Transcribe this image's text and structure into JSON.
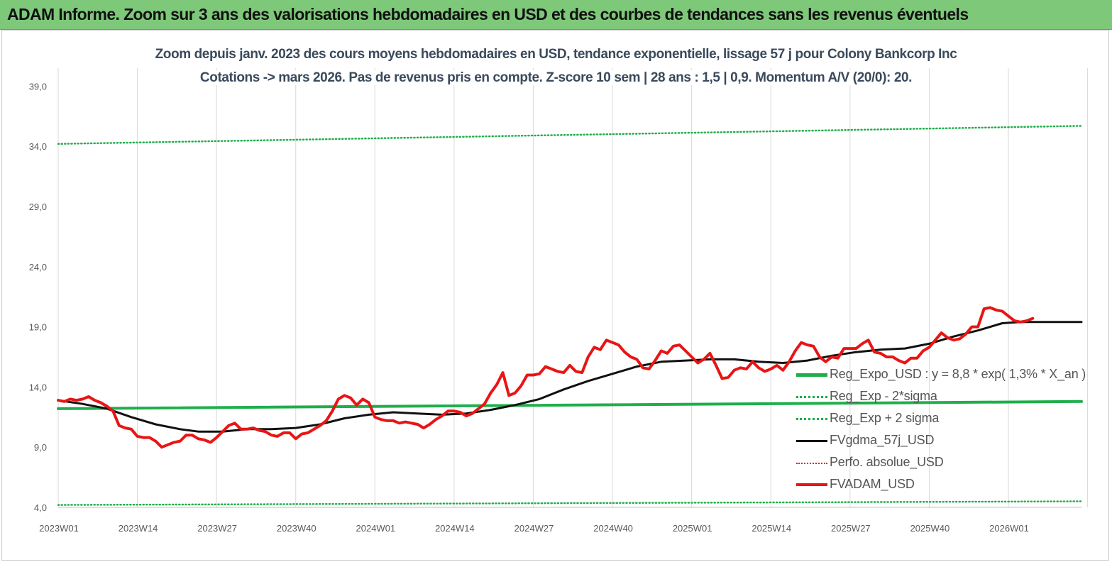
{
  "banner": {
    "title": "ADAM Informe. Zoom sur 3 ans des valorisations hebdomadaires en USD et des courbes de tendances sans les revenus éventuels"
  },
  "chart_data": {
    "type": "line",
    "title": "Zoom depuis janv. 2023 des cours moyens hebdomadaires en USD, tendance exponentielle, lissage 57 j pour Colony Bankcorp Inc",
    "subtitle": "Cotations -> mars 2026. Pas de revenus pris en compte. Z-score 10 sem | 28 ans : 1,5 | 0,9. Momentum A/V (20/0): 20.",
    "xlabel": "",
    "ylabel": "",
    "ylim": [
      4.0,
      40.5
    ],
    "y_ticks": [
      "4,0",
      "9,0",
      "14,0",
      "19,0",
      "24,0",
      "29,0",
      "34,0",
      "39,0"
    ],
    "y_tick_values": [
      4,
      9,
      14,
      19,
      24,
      29,
      34,
      39
    ],
    "x_tick_labels": [
      "2023W01",
      "2023W14",
      "2023W27",
      "2023W40",
      "2024W01",
      "2024W14",
      "2024W27",
      "2024W40",
      "2025W01",
      "2025W14",
      "2025W27",
      "2025W40",
      "2026W01"
    ],
    "x_range_weeks": [
      0,
      168
    ],
    "grid": "vertical",
    "legend_position": "lower-right",
    "series": [
      {
        "name": "Reg_Expo_USD : y = 8,8 * exp( 1,3% *  X_an )",
        "color": "#1fae4b",
        "style": "solid-thick",
        "points": [
          [
            0,
            12.2
          ],
          [
            168,
            12.8
          ]
        ]
      },
      {
        "name": "Reg_Exp - 2*sigma",
        "color": "#1fae4b",
        "style": "dotted",
        "points": [
          [
            0,
            4.2
          ],
          [
            168,
            4.5
          ]
        ]
      },
      {
        "name": "Reg_Exp + 2 sigma",
        "color": "#1fae4b",
        "style": "dotted",
        "points": [
          [
            0,
            34.2
          ],
          [
            168,
            35.7
          ]
        ]
      },
      {
        "name": "FVgdma_57j_USD",
        "color": "#111111",
        "style": "solid",
        "points": [
          [
            0,
            12.9
          ],
          [
            4,
            12.6
          ],
          [
            8,
            12.2
          ],
          [
            12,
            11.5
          ],
          [
            16,
            10.9
          ],
          [
            20,
            10.5
          ],
          [
            23,
            10.3
          ],
          [
            27,
            10.3
          ],
          [
            31,
            10.5
          ],
          [
            35,
            10.5
          ],
          [
            39,
            10.6
          ],
          [
            43,
            10.9
          ],
          [
            47,
            11.4
          ],
          [
            51,
            11.7
          ],
          [
            55,
            11.9
          ],
          [
            59,
            11.8
          ],
          [
            63,
            11.7
          ],
          [
            67,
            11.8
          ],
          [
            71,
            12.1
          ],
          [
            75,
            12.5
          ],
          [
            79,
            13.0
          ],
          [
            83,
            13.8
          ],
          [
            87,
            14.5
          ],
          [
            91,
            15.1
          ],
          [
            95,
            15.7
          ],
          [
            99,
            16.1
          ],
          [
            103,
            16.2
          ],
          [
            107,
            16.3
          ],
          [
            111,
            16.3
          ],
          [
            115,
            16.1
          ],
          [
            119,
            16.0
          ],
          [
            123,
            16.2
          ],
          [
            127,
            16.6
          ],
          [
            131,
            16.9
          ],
          [
            135,
            17.1
          ],
          [
            139,
            17.2
          ],
          [
            143,
            17.6
          ],
          [
            147,
            18.2
          ],
          [
            151,
            18.7
          ],
          [
            155,
            19.3
          ],
          [
            158,
            19.4
          ],
          [
            163,
            19.4
          ],
          [
            168,
            19.4
          ]
        ]
      },
      {
        "name": "Perfo. absolue_USD",
        "color": "#e02020",
        "style": "dotted",
        "points": []
      },
      {
        "name": "FVADAM_USD",
        "color": "#e81515",
        "style": "solid-thick",
        "points": [
          [
            0,
            12.9
          ],
          [
            1,
            12.8
          ],
          [
            2,
            13.0
          ],
          [
            3,
            12.9
          ],
          [
            4,
            13.0
          ],
          [
            5,
            13.2
          ],
          [
            6,
            12.9
          ],
          [
            7,
            12.7
          ],
          [
            8,
            12.4
          ],
          [
            9,
            12.0
          ],
          [
            10,
            10.8
          ],
          [
            11,
            10.6
          ],
          [
            12,
            10.5
          ],
          [
            13,
            9.9
          ],
          [
            14,
            9.8
          ],
          [
            15,
            9.8
          ],
          [
            16,
            9.5
          ],
          [
            17,
            9.0
          ],
          [
            18,
            9.2
          ],
          [
            19,
            9.4
          ],
          [
            20,
            9.5
          ],
          [
            21,
            10.0
          ],
          [
            22,
            10.0
          ],
          [
            23,
            9.7
          ],
          [
            24,
            9.6
          ],
          [
            25,
            9.4
          ],
          [
            26,
            9.8
          ],
          [
            27,
            10.3
          ],
          [
            28,
            10.8
          ],
          [
            29,
            11.0
          ],
          [
            30,
            10.5
          ],
          [
            31,
            10.5
          ],
          [
            32,
            10.6
          ],
          [
            33,
            10.4
          ],
          [
            34,
            10.3
          ],
          [
            35,
            10.0
          ],
          [
            36,
            9.9
          ],
          [
            37,
            10.2
          ],
          [
            38,
            10.2
          ],
          [
            39,
            9.7
          ],
          [
            40,
            10.1
          ],
          [
            41,
            10.2
          ],
          [
            42,
            10.5
          ],
          [
            43,
            10.8
          ],
          [
            44,
            11.2
          ],
          [
            45,
            12.0
          ],
          [
            46,
            13.0
          ],
          [
            47,
            13.3
          ],
          [
            48,
            13.1
          ],
          [
            49,
            12.5
          ],
          [
            50,
            13.0
          ],
          [
            51,
            12.7
          ],
          [
            52,
            11.5
          ],
          [
            53,
            11.3
          ],
          [
            54,
            11.2
          ],
          [
            55,
            11.2
          ],
          [
            56,
            11.0
          ],
          [
            57,
            11.1
          ],
          [
            58,
            11.0
          ],
          [
            59,
            10.9
          ],
          [
            60,
            10.6
          ],
          [
            61,
            10.9
          ],
          [
            62,
            11.3
          ],
          [
            63,
            11.6
          ],
          [
            64,
            12.0
          ],
          [
            65,
            12.0
          ],
          [
            66,
            11.9
          ],
          [
            67,
            11.6
          ],
          [
            68,
            11.8
          ],
          [
            69,
            12.2
          ],
          [
            70,
            12.6
          ],
          [
            71,
            13.5
          ],
          [
            72,
            14.2
          ],
          [
            73,
            15.2
          ],
          [
            74,
            13.3
          ],
          [
            75,
            13.5
          ],
          [
            76,
            14.1
          ],
          [
            77,
            15.0
          ],
          [
            78,
            15.0
          ],
          [
            79,
            15.1
          ],
          [
            80,
            15.7
          ],
          [
            81,
            15.5
          ],
          [
            82,
            15.3
          ],
          [
            83,
            15.2
          ],
          [
            84,
            15.8
          ],
          [
            85,
            15.3
          ],
          [
            86,
            15.2
          ],
          [
            87,
            16.5
          ],
          [
            88,
            17.3
          ],
          [
            89,
            17.1
          ],
          [
            90,
            17.9
          ],
          [
            91,
            17.7
          ],
          [
            92,
            17.5
          ],
          [
            93,
            16.9
          ],
          [
            94,
            16.5
          ],
          [
            95,
            16.3
          ],
          [
            96,
            15.6
          ],
          [
            97,
            15.5
          ],
          [
            98,
            16.2
          ],
          [
            99,
            17.0
          ],
          [
            100,
            16.8
          ],
          [
            101,
            17.4
          ],
          [
            102,
            17.5
          ],
          [
            103,
            17.0
          ],
          [
            104,
            16.5
          ],
          [
            105,
            16.0
          ],
          [
            106,
            16.3
          ],
          [
            107,
            16.8
          ],
          [
            108,
            15.8
          ],
          [
            109,
            14.7
          ],
          [
            110,
            14.8
          ],
          [
            111,
            15.4
          ],
          [
            112,
            15.6
          ],
          [
            113,
            15.5
          ],
          [
            114,
            16.1
          ],
          [
            115,
            15.6
          ],
          [
            116,
            15.3
          ],
          [
            117,
            15.5
          ],
          [
            118,
            15.8
          ],
          [
            119,
            15.4
          ],
          [
            120,
            16.1
          ],
          [
            121,
            17.0
          ],
          [
            122,
            17.7
          ],
          [
            123,
            17.5
          ],
          [
            124,
            17.4
          ],
          [
            125,
            16.5
          ],
          [
            126,
            16.1
          ],
          [
            127,
            16.5
          ],
          [
            128,
            16.4
          ],
          [
            129,
            17.2
          ],
          [
            130,
            17.2
          ],
          [
            131,
            17.2
          ],
          [
            132,
            17.6
          ],
          [
            133,
            17.9
          ],
          [
            134,
            16.9
          ],
          [
            135,
            16.8
          ],
          [
            136,
            16.5
          ],
          [
            137,
            16.5
          ],
          [
            138,
            16.2
          ],
          [
            139,
            16.0
          ],
          [
            140,
            16.4
          ],
          [
            141,
            16.4
          ],
          [
            142,
            17.0
          ],
          [
            143,
            17.3
          ],
          [
            144,
            17.9
          ],
          [
            145,
            18.5
          ],
          [
            146,
            18.1
          ],
          [
            147,
            17.9
          ],
          [
            148,
            18.0
          ],
          [
            149,
            18.4
          ],
          [
            150,
            19.0
          ],
          [
            151,
            19.0
          ],
          [
            152,
            20.5
          ],
          [
            153,
            20.6
          ],
          [
            154,
            20.4
          ],
          [
            155,
            20.3
          ],
          [
            156,
            19.9
          ],
          [
            157,
            19.5
          ],
          [
            158,
            19.4
          ],
          [
            159,
            19.5
          ],
          [
            160,
            19.7
          ]
        ]
      }
    ]
  },
  "legend_labels": [
    "Reg_Expo_USD : y = 8,8 * exp( 1,3% *  X_an )",
    "Reg_Exp - 2*sigma",
    "Reg_Exp + 2 sigma",
    "FVgdma_57j_USD",
    "Perfo. absolue_USD",
    "FVADAM_USD"
  ]
}
